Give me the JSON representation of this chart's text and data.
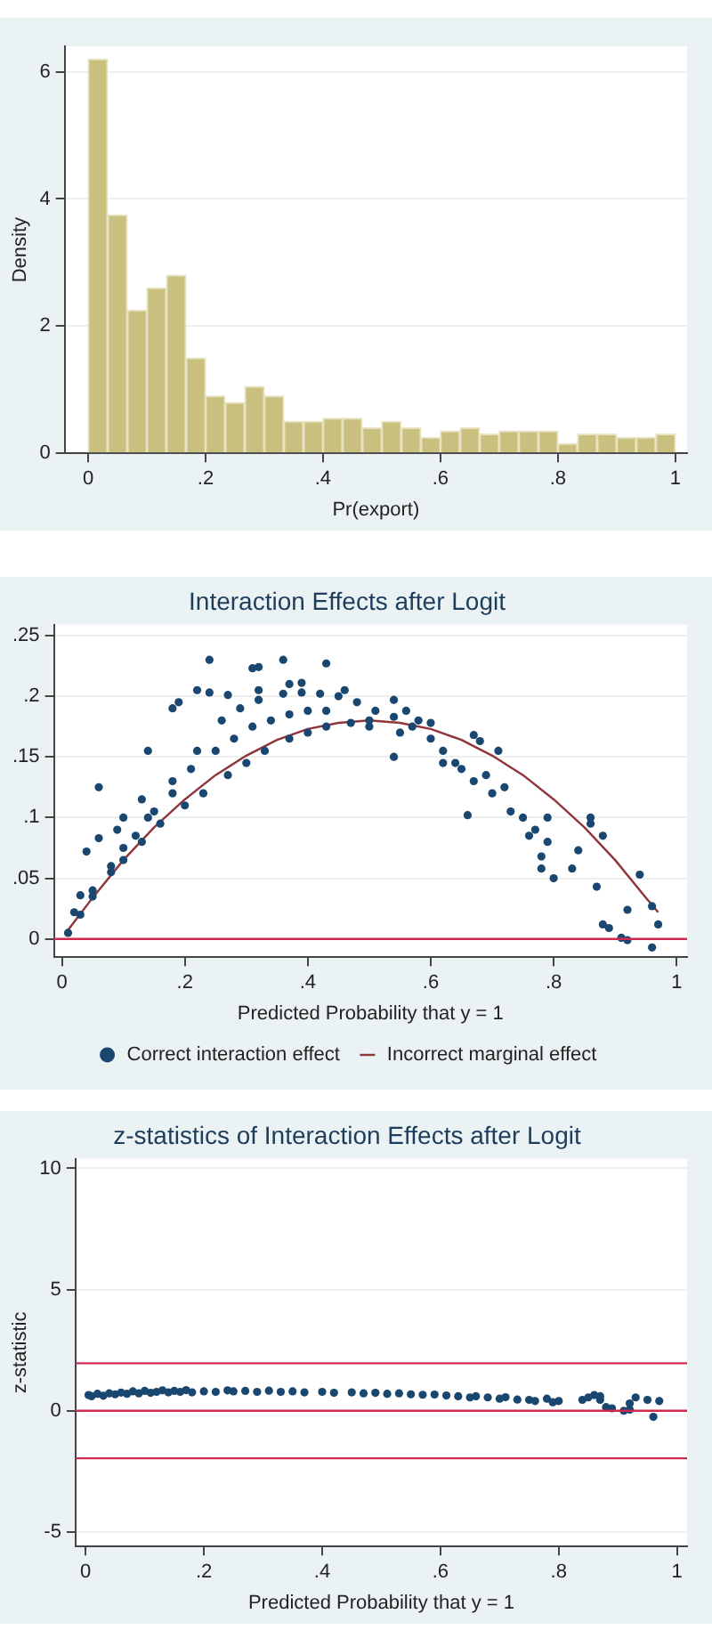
{
  "chart_data": [
    {
      "type": "histogram",
      "xlabel": "Pr(export)",
      "ylabel": "Density",
      "color": "#c9c07f",
      "bins": [
        0,
        0.033,
        0.067,
        0.1,
        0.133,
        0.167,
        0.2,
        0.233,
        0.267,
        0.3,
        0.333,
        0.367,
        0.4,
        0.433,
        0.467,
        0.5,
        0.533,
        0.567,
        0.6,
        0.633,
        0.667,
        0.7,
        0.733,
        0.767,
        0.8,
        0.833,
        0.867,
        0.9,
        0.933,
        0.967,
        1
      ],
      "values": [
        6.2,
        3.75,
        2.25,
        2.6,
        2.8,
        1.5,
        0.9,
        0.8,
        1.05,
        0.9,
        0.5,
        0.5,
        0.55,
        0.55,
        0.4,
        0.5,
        0.4,
        0.25,
        0.35,
        0.4,
        0.3,
        0.35,
        0.35,
        0.35,
        0.15,
        0.3,
        0.3,
        0.25,
        0.25,
        0.3
      ],
      "xlim": [
        -0.04,
        1.02
      ],
      "xticks": [
        {
          "value": 0,
          "label": "0"
        },
        {
          "value": 0.2,
          "label": ".2"
        },
        {
          "value": 0.4,
          "label": ".4"
        },
        {
          "value": 0.6,
          "label": ".6"
        },
        {
          "value": 0.8,
          "label": ".8"
        },
        {
          "value": 1,
          "label": "1"
        }
      ],
      "ylim": [
        0,
        6.4
      ],
      "yticks": [
        {
          "value": 0,
          "label": "0"
        },
        2,
        4,
        6
      ],
      "grid": "y"
    },
    {
      "type": "scatter",
      "title": "Interaction Effects after Logit",
      "xlabel": "Predicted Probability that y = 1",
      "legend": "bottom",
      "grid": "y",
      "xlim": [
        -0.013,
        1.017
      ],
      "xticks": [
        {
          "value": 0,
          "label": "0"
        },
        {
          "value": 0.2,
          "label": ".2"
        },
        {
          "value": 0.4,
          "label": ".4"
        },
        {
          "value": 0.6,
          "label": ".6"
        },
        {
          "value": 0.8,
          "label": ".8"
        },
        {
          "value": 1,
          "label": "1"
        }
      ],
      "ylim": [
        -0.015,
        0.259
      ],
      "yticks": [
        {
          "value": 0,
          "label": "0"
        },
        {
          "value": 0.05,
          "label": ".05"
        },
        {
          "value": 0.1,
          "label": ".1"
        },
        {
          "value": 0.15,
          "label": ".15"
        },
        {
          "value": 0.2,
          "label": ".2"
        },
        {
          "value": 0.25,
          "label": ".25"
        }
      ],
      "ref_lines": [
        {
          "axis": "y",
          "value": 0,
          "color": "#d0284f"
        }
      ],
      "series": [
        {
          "name": "Correct interaction effect",
          "type": "scatter",
          "marker": "circle",
          "color": "#1a476f",
          "x": [
            0.01,
            0.03,
            0.05,
            0.08,
            0.1,
            0.13,
            0.16,
            0.2,
            0.23,
            0.27,
            0.3,
            0.33,
            0.37,
            0.4,
            0.43,
            0.47,
            0.5,
            0.05,
            0.08,
            0.12,
            0.15,
            0.18,
            0.21,
            0.25,
            0.28,
            0.31,
            0.34,
            0.37,
            0.4,
            0.43,
            0.1,
            0.14,
            0.18,
            0.22,
            0.26,
            0.29,
            0.32,
            0.36,
            0.39,
            0.42,
            0.45,
            0.48,
            0.51,
            0.54,
            0.57,
            0.6,
            0.62,
            0.64,
            0.06,
            0.14,
            0.18,
            0.19,
            0.22,
            0.24,
            0.24,
            0.27,
            0.31,
            0.32,
            0.32,
            0.36,
            0.37,
            0.39,
            0.43,
            0.46,
            0.54,
            0.54,
            0.56,
            0.66,
            0.67,
            0.68,
            0.69,
            0.7,
            0.71,
            0.72,
            0.73,
            0.75,
            0.76,
            0.77,
            0.78,
            0.79,
            0.79,
            0.8,
            0.78,
            0.83,
            0.84,
            0.86,
            0.86,
            0.87,
            0.88,
            0.88,
            0.89,
            0.91,
            0.92,
            0.92,
            0.94,
            0.96,
            0.96,
            0.97,
            0.04,
            0.06,
            0.09,
            0.1,
            0.13,
            0.02,
            0.03,
            0.62,
            0.6,
            0.58,
            0.65,
            0.67,
            0.55,
            0.5
          ],
          "values": [
            0.005,
            0.02,
            0.035,
            0.055,
            0.065,
            0.08,
            0.095,
            0.11,
            0.12,
            0.135,
            0.145,
            0.155,
            0.165,
            0.17,
            0.175,
            0.178,
            0.18,
            0.04,
            0.06,
            0.085,
            0.105,
            0.12,
            0.14,
            0.155,
            0.165,
            0.175,
            0.18,
            0.185,
            0.188,
            0.188,
            0.075,
            0.1,
            0.13,
            0.155,
            0.18,
            0.19,
            0.197,
            0.202,
            0.203,
            0.202,
            0.2,
            0.195,
            0.188,
            0.183,
            0.175,
            0.165,
            0.155,
            0.145,
            0.125,
            0.155,
            0.19,
            0.195,
            0.205,
            0.23,
            0.203,
            0.201,
            0.223,
            0.224,
            0.205,
            0.23,
            0.21,
            0.211,
            0.227,
            0.205,
            0.197,
            0.15,
            0.188,
            0.102,
            0.168,
            0.163,
            0.135,
            0.12,
            0.155,
            0.125,
            0.105,
            0.1,
            0.085,
            0.09,
            0.068,
            0.08,
            0.1,
            0.05,
            0.058,
            0.058,
            0.073,
            0.1,
            0.095,
            0.043,
            0.085,
            0.012,
            0.009,
            0.001,
            -0.001,
            0.024,
            0.053,
            0.027,
            -0.007,
            0.012,
            0.072,
            0.083,
            0.09,
            0.1,
            0.115,
            0.022,
            0.036,
            0.145,
            0.178,
            0.18,
            0.14,
            0.13,
            0.17,
            0.175
          ]
        },
        {
          "name": "Incorrect marginal effect",
          "type": "line",
          "color": "#90353b",
          "x": [
            0.005,
            0.05,
            0.1,
            0.15,
            0.2,
            0.25,
            0.3,
            0.35,
            0.4,
            0.45,
            0.5,
            0.55,
            0.6,
            0.65,
            0.7,
            0.75,
            0.8,
            0.85,
            0.9,
            0.95,
            0.97
          ],
          "values": [
            0.004,
            0.034,
            0.065,
            0.092,
            0.115,
            0.135,
            0.151,
            0.164,
            0.173,
            0.178,
            0.18,
            0.178,
            0.173,
            0.164,
            0.151,
            0.135,
            0.115,
            0.092,
            0.065,
            0.034,
            0.022
          ]
        }
      ]
    },
    {
      "type": "scatter",
      "title": "z-statistics of Interaction Effects after Logit",
      "xlabel": "Predicted Probability that y = 1",
      "ylabel": "z-statistic",
      "grid": "y",
      "xlim": [
        -0.017,
        1.017
      ],
      "xticks": [
        {
          "value": 0,
          "label": "0"
        },
        {
          "value": 0.2,
          "label": ".2"
        },
        {
          "value": 0.4,
          "label": ".4"
        },
        {
          "value": 0.6,
          "label": ".6"
        },
        {
          "value": 0.8,
          "label": ".8"
        },
        {
          "value": 1,
          "label": "1"
        }
      ],
      "ylim": [
        -5.6,
        10.4
      ],
      "yticks": [
        -5,
        {
          "value": 0,
          "label": "0"
        },
        5,
        10
      ],
      "ref_lines": [
        {
          "axis": "y",
          "value": 1.96,
          "color": "#d0284f"
        },
        {
          "axis": "y",
          "value": 0,
          "color": "#d0284f"
        },
        {
          "axis": "y",
          "value": -1.96,
          "color": "#d0284f"
        }
      ],
      "series": [
        {
          "type": "scatter",
          "marker": "circle",
          "color": "#1a476f",
          "x": [
            0.005,
            0.01,
            0.02,
            0.03,
            0.04,
            0.05,
            0.06,
            0.07,
            0.08,
            0.09,
            0.1,
            0.11,
            0.12,
            0.13,
            0.14,
            0.15,
            0.16,
            0.17,
            0.18,
            0.2,
            0.22,
            0.24,
            0.25,
            0.27,
            0.29,
            0.31,
            0.33,
            0.35,
            0.37,
            0.4,
            0.42,
            0.45,
            0.47,
            0.49,
            0.51,
            0.53,
            0.55,
            0.57,
            0.59,
            0.61,
            0.63,
            0.65,
            0.66,
            0.68,
            0.7,
            0.71,
            0.73,
            0.75,
            0.76,
            0.78,
            0.79,
            0.8,
            0.84,
            0.85,
            0.86,
            0.87,
            0.87,
            0.88,
            0.89,
            0.91,
            0.92,
            0.92,
            0.93,
            0.95,
            0.96,
            0.97
          ],
          "values": [
            0.65,
            0.6,
            0.7,
            0.62,
            0.72,
            0.68,
            0.75,
            0.7,
            0.8,
            0.72,
            0.82,
            0.74,
            0.78,
            0.84,
            0.76,
            0.82,
            0.78,
            0.85,
            0.76,
            0.8,
            0.78,
            0.84,
            0.8,
            0.82,
            0.78,
            0.83,
            0.78,
            0.8,
            0.76,
            0.78,
            0.74,
            0.76,
            0.72,
            0.74,
            0.7,
            0.72,
            0.68,
            0.66,
            0.67,
            0.63,
            0.6,
            0.55,
            0.6,
            0.55,
            0.5,
            0.56,
            0.46,
            0.45,
            0.4,
            0.5,
            0.35,
            0.4,
            0.45,
            0.55,
            0.65,
            0.45,
            0.6,
            0.15,
            0.1,
            0.0,
            0.05,
            0.3,
            0.55,
            0.45,
            -0.25,
            0.4
          ]
        }
      ]
    }
  ]
}
